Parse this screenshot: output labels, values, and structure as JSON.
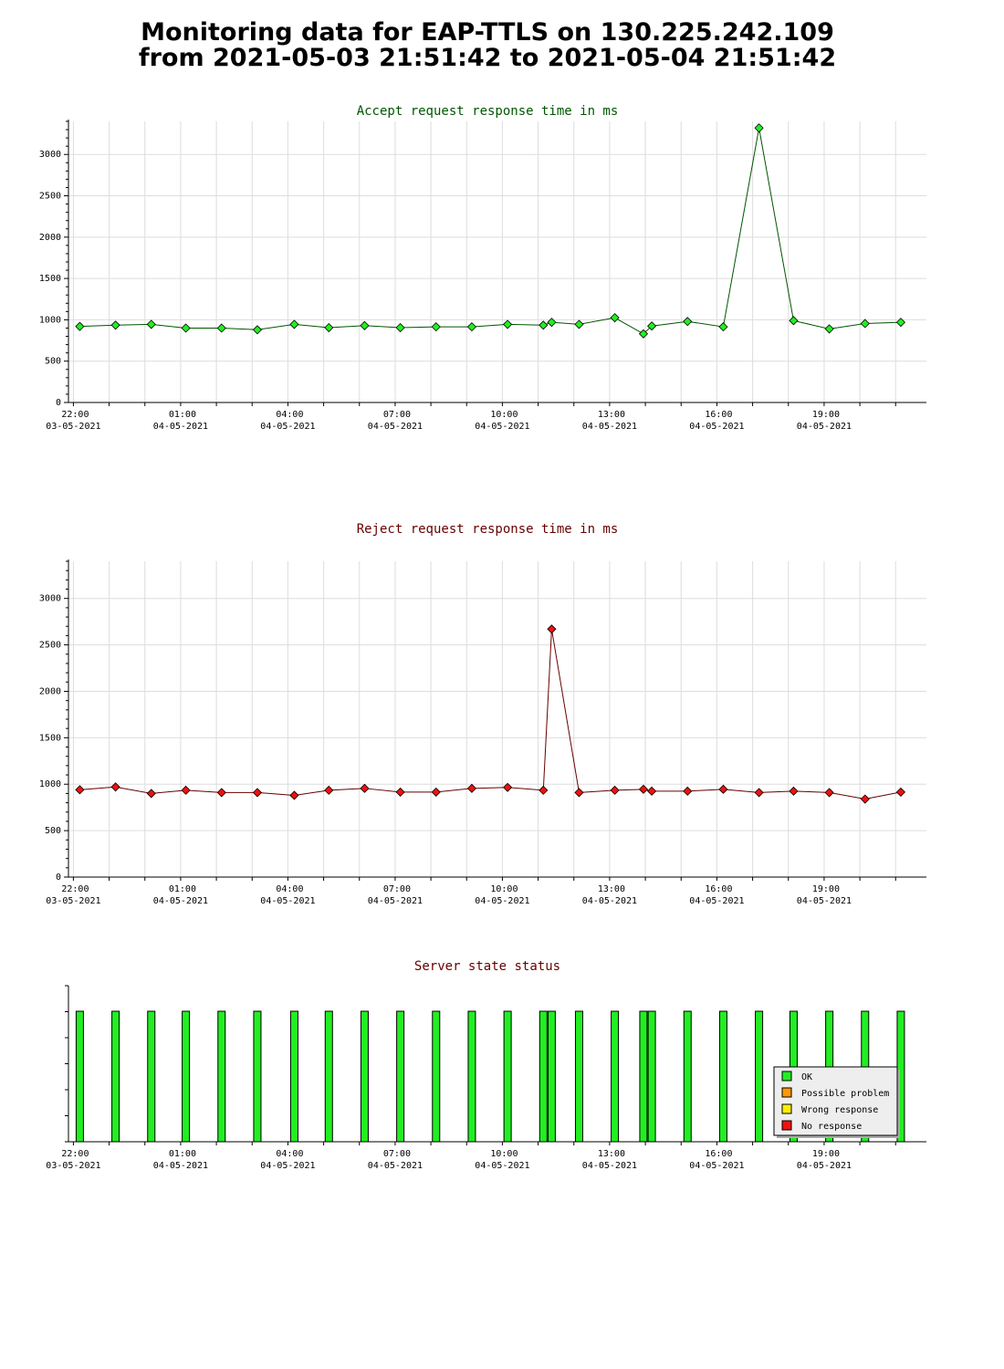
{
  "title": {
    "line1": "Monitoring data for EAP-TTLS on 130.225.242.109",
    "line2": "from 2021-05-03 21:51:42 to 2021-05-04 21:51:42"
  },
  "colors": {
    "accept_line": "#005500",
    "accept_marker": "#22ee22",
    "reject_line": "#660000",
    "reject_marker": "#ee1111",
    "status_title": "#660000",
    "ok": "#22ee22",
    "possible_problem": "#ff9900",
    "wrong_response": "#ffee00",
    "no_response": "#ee1111",
    "grid": "#dddddd"
  },
  "x_ticks": [
    {
      "time": "22:00",
      "date": "03-05-2021"
    },
    {
      "time": "01:00",
      "date": "04-05-2021"
    },
    {
      "time": "04:00",
      "date": "04-05-2021"
    },
    {
      "time": "07:00",
      "date": "04-05-2021"
    },
    {
      "time": "10:00",
      "date": "04-05-2021"
    },
    {
      "time": "13:00",
      "date": "04-05-2021"
    },
    {
      "time": "16:00",
      "date": "04-05-2021"
    },
    {
      "time": "19:00",
      "date": "04-05-2021"
    }
  ],
  "chart_data": [
    {
      "type": "line",
      "title": "Accept request response time in ms",
      "xlabel": "",
      "ylabel": "",
      "xlim": [
        "2021-05-03 21:51:42",
        "2021-05-04 21:51:42"
      ],
      "ylim": [
        0,
        3400
      ],
      "y_ticks": [
        0,
        500,
        1000,
        1500,
        2000,
        2500,
        3000
      ],
      "grid": true,
      "x": [
        "2021-05-03 22:00",
        "2021-05-03 23:00",
        "2021-05-04 00:00",
        "2021-05-04 00:58",
        "2021-05-04 01:58",
        "2021-05-04 02:58",
        "2021-05-04 04:00",
        "2021-05-04 04:58",
        "2021-05-04 05:58",
        "2021-05-04 06:58",
        "2021-05-04 07:58",
        "2021-05-04 08:58",
        "2021-05-04 09:58",
        "2021-05-04 10:58",
        "2021-05-04 11:12",
        "2021-05-04 11:58",
        "2021-05-04 12:58",
        "2021-05-04 13:46",
        "2021-05-04 14:00",
        "2021-05-04 15:00",
        "2021-05-04 16:00",
        "2021-05-04 17:00",
        "2021-05-04 17:58",
        "2021-05-04 18:58",
        "2021-05-04 19:58",
        "2021-05-04 20:58"
      ],
      "y": [
        920,
        935,
        945,
        900,
        900,
        880,
        945,
        905,
        930,
        905,
        915,
        915,
        945,
        935,
        970,
        945,
        1025,
        830,
        925,
        980,
        915,
        3320,
        990,
        890,
        955,
        970
      ]
    },
    {
      "type": "line",
      "title": "Reject request response time in ms",
      "xlabel": "",
      "ylabel": "",
      "xlim": [
        "2021-05-03 21:51:42",
        "2021-05-04 21:51:42"
      ],
      "ylim": [
        0,
        3400
      ],
      "y_ticks": [
        0,
        500,
        1000,
        1500,
        2000,
        2500,
        3000
      ],
      "grid": true,
      "x": [
        "2021-05-03 22:00",
        "2021-05-03 23:00",
        "2021-05-04 00:00",
        "2021-05-04 00:58",
        "2021-05-04 01:58",
        "2021-05-04 02:58",
        "2021-05-04 04:00",
        "2021-05-04 04:58",
        "2021-05-04 05:58",
        "2021-05-04 06:58",
        "2021-05-04 07:58",
        "2021-05-04 08:58",
        "2021-05-04 09:58",
        "2021-05-04 10:58",
        "2021-05-04 11:12",
        "2021-05-04 11:58",
        "2021-05-04 12:58",
        "2021-05-04 13:46",
        "2021-05-04 14:00",
        "2021-05-04 15:00",
        "2021-05-04 16:00",
        "2021-05-04 17:00",
        "2021-05-04 17:58",
        "2021-05-04 18:58",
        "2021-05-04 19:58",
        "2021-05-04 20:58"
      ],
      "y": [
        940,
        970,
        900,
        935,
        910,
        910,
        880,
        935,
        955,
        915,
        915,
        955,
        965,
        935,
        2670,
        910,
        935,
        945,
        925,
        925,
        945,
        910,
        925,
        910,
        840,
        915
      ]
    },
    {
      "type": "bar",
      "title": "Server state status",
      "xlabel": "",
      "ylabel": "",
      "xlim": [
        "2021-05-03 21:51:42",
        "2021-05-04 21:51:42"
      ],
      "grid": false,
      "legend": {
        "placement": "bottom-right",
        "entries": [
          "OK",
          "Possible problem",
          "Wrong response",
          "No response"
        ]
      },
      "x": [
        "2021-05-03 22:00",
        "2021-05-03 23:00",
        "2021-05-04 00:00",
        "2021-05-04 00:58",
        "2021-05-04 01:58",
        "2021-05-04 02:58",
        "2021-05-04 04:00",
        "2021-05-04 04:58",
        "2021-05-04 05:58",
        "2021-05-04 06:58",
        "2021-05-04 07:58",
        "2021-05-04 08:58",
        "2021-05-04 09:58",
        "2021-05-04 10:58",
        "2021-05-04 11:12",
        "2021-05-04 11:58",
        "2021-05-04 12:58",
        "2021-05-04 13:46",
        "2021-05-04 14:00",
        "2021-05-04 15:00",
        "2021-05-04 16:00",
        "2021-05-04 17:00",
        "2021-05-04 17:58",
        "2021-05-04 18:58",
        "2021-05-04 19:58",
        "2021-05-04 20:58"
      ],
      "status": [
        "OK",
        "OK",
        "OK",
        "OK",
        "OK",
        "OK",
        "OK",
        "OK",
        "OK",
        "OK",
        "OK",
        "OK",
        "OK",
        "OK",
        "OK",
        "OK",
        "OK",
        "OK",
        "OK",
        "OK",
        "OK",
        "OK",
        "OK",
        "OK",
        "OK",
        "OK"
      ]
    }
  ]
}
